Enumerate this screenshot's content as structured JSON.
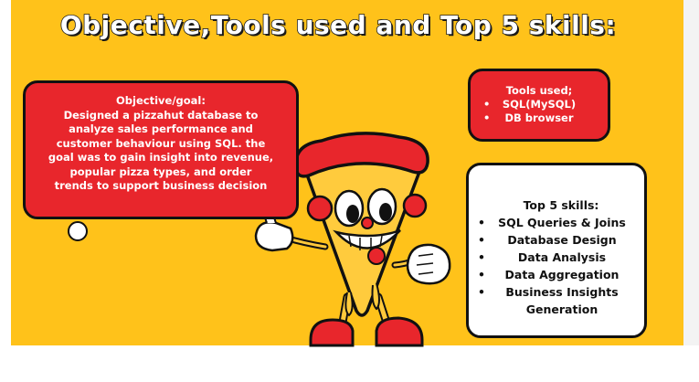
{
  "title": "Objective,Tools used and Top 5 skills:",
  "objective": {
    "heading": "Objective/goal:",
    "lines": [
      "Designed a pizzahut database to",
      "analyze sales performance and",
      "customer behaviour using SQL. the",
      "goal was to gain insight into revenue,",
      "popular pizza types, and order",
      "trends to support business decision"
    ]
  },
  "tools": {
    "heading": "Tools used;",
    "items": [
      "SQL(MySQL)",
      "DB browser"
    ]
  },
  "skills": {
    "heading": "Top 5 skills:",
    "items": [
      "SQL Queries & Joins",
      "Database Design",
      "Data Analysis",
      "Data Aggregation",
      "Business Insights Generation"
    ]
  },
  "colors": {
    "background": "#FFC21A",
    "accent_red": "#E8262C",
    "outline": "#111111"
  }
}
